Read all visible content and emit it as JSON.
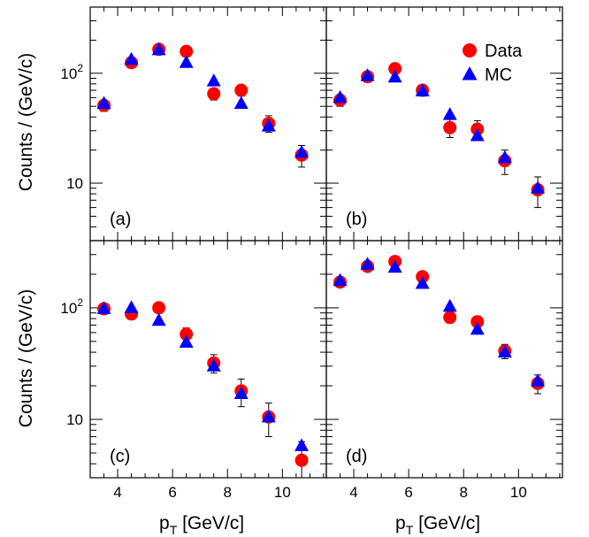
{
  "chart_data": {
    "type": "scatter",
    "layout": "2x2 grid of panels sharing x and y axes",
    "xlabel": "p",
    "xlabel_sub": "T",
    "xlabel_unit": " [GeV/c]",
    "ylabel": "Counts / (GeV/c)",
    "xlim": [
      3,
      11.6
    ],
    "ylim": [
      3,
      400
    ],
    "yscale": "log",
    "x_ticks": [
      4,
      6,
      8,
      10
    ],
    "y_ticks": [
      {
        "value": 10,
        "base": "10",
        "exp": ""
      },
      {
        "value": 100,
        "base": "10",
        "exp": "2"
      }
    ],
    "legend": {
      "placement": "top-right of panel (b)",
      "entries": [
        {
          "name": "Data",
          "marker": "circle",
          "color": "#ff0000"
        },
        {
          "name": "MC",
          "marker": "triangle",
          "color": "#0000ff"
        }
      ]
    },
    "panels": [
      {
        "label": "(a)",
        "x": [
          3.5,
          4.5,
          5.5,
          6.5,
          7.5,
          8.5,
          9.5,
          10.7
        ],
        "series": [
          {
            "name": "Data",
            "values": [
              51,
              125,
              165,
              158,
              65,
              70,
              35,
              18
            ],
            "errors": [
              6,
              11,
              13,
              13,
              8,
              8,
              6,
              4
            ]
          },
          {
            "name": "MC",
            "values": [
              53,
              133,
              163,
              125,
              85,
              53,
              33,
              19
            ]
          }
        ]
      },
      {
        "label": "(b)",
        "x": [
          3.5,
          4.5,
          5.5,
          6.5,
          7.5,
          8.5,
          9.5,
          10.7
        ],
        "series": [
          {
            "name": "Data",
            "values": [
              57,
              93,
              110,
              70,
              32,
              31,
              16,
              8.7
            ],
            "errors": [
              7,
              9,
              10,
              8,
              6,
              6,
              4,
              2.7
            ]
          },
          {
            "name": "MC",
            "values": [
              60,
              95,
              92,
              69,
              42,
              27,
              17,
              9
            ]
          }
        ]
      },
      {
        "label": "(c)",
        "x": [
          3.5,
          4.5,
          5.5,
          6.5,
          7.5,
          8.5,
          9.5,
          10.7
        ],
        "series": [
          {
            "name": "Data",
            "values": [
              98,
              88,
              100,
              58,
              32,
              18,
              10.5,
              4.3
            ],
            "errors": [
              10,
              9,
              10,
              8,
              6,
              5,
              3.5,
              2
            ]
          },
          {
            "name": "MC",
            "values": [
              98,
              100,
              77,
              49,
              30,
              17,
              10.5,
              5.8
            ]
          }
        ]
      },
      {
        "label": "(d)",
        "x": [
          3.5,
          4.5,
          5.5,
          6.5,
          7.5,
          8.5,
          9.5,
          10.7
        ],
        "series": [
          {
            "name": "Data",
            "values": [
              170,
              235,
              260,
              190,
              82,
              75,
              41,
              21
            ],
            "errors": [
              13,
              15,
              16,
              14,
              9,
              9,
              6,
              4
            ]
          },
          {
            "name": "MC",
            "values": [
              175,
              245,
              230,
              165,
              103,
              64,
              40,
              22
            ]
          }
        ]
      }
    ]
  }
}
